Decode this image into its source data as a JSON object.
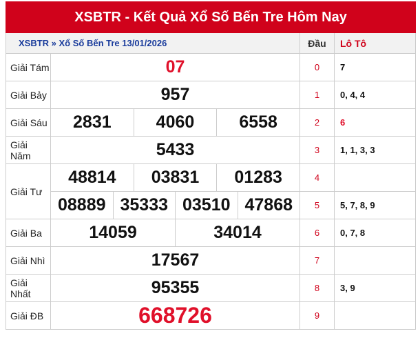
{
  "header": {
    "title": "XSBTR - Kết Quả Xổ Số Bến Tre Hôm Nay",
    "subtitle": "XSBTR » Xổ Số Bến Tre 13/01/2026",
    "dau": "Đầu",
    "loto": "Lô Tô"
  },
  "prizes": [
    {
      "label": "Giải Tám",
      "rows": [
        [
          "07"
        ]
      ],
      "color": "#e0102a"
    },
    {
      "label": "Giải Bảy",
      "rows": [
        [
          "957"
        ]
      ]
    },
    {
      "label": "Giải Sáu",
      "rows": [
        [
          "2831",
          "4060",
          "6558"
        ]
      ]
    },
    {
      "label": "Giải Năm",
      "rows": [
        [
          "5433"
        ]
      ]
    },
    {
      "label": "Giải Tư",
      "rows": [
        [
          "48814",
          "03831",
          "01283"
        ],
        [
          "08889",
          "35333",
          "03510",
          "47868"
        ]
      ]
    },
    {
      "label": "Giải Ba",
      "rows": [
        [
          "14059",
          "34014"
        ]
      ]
    },
    {
      "label": "Giải Nhì",
      "rows": [
        [
          "17567"
        ]
      ]
    },
    {
      "label": "Giải Nhất",
      "rows": [
        [
          "95355"
        ]
      ]
    },
    {
      "label": "Giải ĐB",
      "rows": [
        [
          "668726"
        ]
      ],
      "color": "#e0102a",
      "size": 32
    }
  ],
  "loto": [
    {
      "dau": "0",
      "tails": "7"
    },
    {
      "dau": "1",
      "tails": "0, 4, 4"
    },
    {
      "dau": "2",
      "tails": "6",
      "color": "#e0102a"
    },
    {
      "dau": "3",
      "tails": "1, 1, 3, 3"
    },
    {
      "dau": "4"
    },
    {
      "dau": "5",
      "tails": "5, 7, 8, 9"
    },
    {
      "dau": "6",
      "tails": "0, 7, 8"
    },
    {
      "dau": "7"
    },
    {
      "dau": "8",
      "tails": "3, 9"
    },
    {
      "dau": "9"
    }
  ]
}
